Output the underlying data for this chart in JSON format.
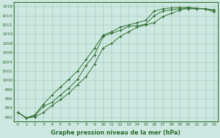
{
  "x": [
    0,
    1,
    2,
    3,
    4,
    5,
    6,
    7,
    8,
    9,
    10,
    11,
    12,
    13,
    14,
    15,
    16,
    17,
    18,
    19,
    20,
    21,
    22,
    23
  ],
  "line1": [
    993.0,
    991.8,
    992.3,
    994.3,
    995.2,
    996.8,
    998.3,
    1000.2,
    1003.2,
    1005.5,
    1009.5,
    1010.2,
    1010.8,
    1011.7,
    1011.8,
    1012.2,
    1014.0,
    1015.0,
    1015.3,
    1015.5,
    1015.5,
    1015.5,
    1015.5,
    1015.3
  ],
  "line2": [
    993.0,
    991.8,
    992.5,
    994.8,
    996.8,
    998.5,
    1000.2,
    1002.0,
    1004.5,
    1007.0,
    1009.8,
    1010.5,
    1011.5,
    1012.0,
    1012.5,
    1013.0,
    1015.0,
    1015.5,
    1015.7,
    1015.8,
    1015.8,
    1015.6,
    1015.5,
    1015.2
  ],
  "line3": [
    993.0,
    991.8,
    992.0,
    993.0,
    994.5,
    995.8,
    997.2,
    999.0,
    1000.8,
    1003.5,
    1007.0,
    1008.0,
    1009.5,
    1010.5,
    1011.5,
    1012.0,
    1012.5,
    1013.8,
    1014.5,
    1015.2,
    1015.8,
    1015.6,
    1015.5,
    1014.8
  ],
  "line_color": "#2d6a2d",
  "bg_color": "#cce8e0",
  "grid_color": "#a8ccbf",
  "xlabel": "Graphe pression niveau de la mer (hPa)",
  "ylim": [
    991,
    1017
  ],
  "xlim": [
    -0.5,
    23.5
  ],
  "yticks": [
    992,
    994,
    996,
    998,
    1000,
    1002,
    1004,
    1006,
    1008,
    1010,
    1012,
    1014,
    1016
  ],
  "xticks": [
    0,
    1,
    2,
    3,
    4,
    5,
    6,
    7,
    8,
    9,
    10,
    11,
    12,
    13,
    14,
    15,
    16,
    17,
    18,
    19,
    20,
    21,
    22,
    23
  ]
}
